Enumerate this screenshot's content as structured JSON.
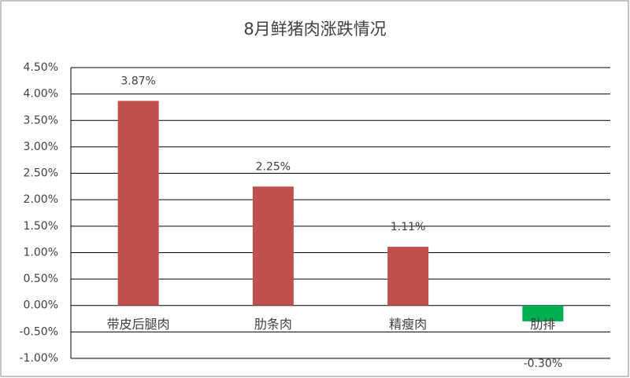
{
  "chart_data": {
    "type": "bar",
    "title": "8月鲜猪肉涨跌情况",
    "categories": [
      "带皮后腿肉",
      "肋条肉",
      "精瘦肉",
      "肋排"
    ],
    "values": [
      3.87,
      2.25,
      1.11,
      -0.3
    ],
    "value_labels": [
      "3.87%",
      "2.25%",
      "1.11%",
      "-0.30%"
    ],
    "colors": [
      "#c0504d",
      "#c0504d",
      "#c0504d",
      "#00b050"
    ],
    "ylim": [
      -1.0,
      4.5
    ],
    "yticks": [
      {
        "value": -1.0,
        "label": "-1.00%"
      },
      {
        "value": -0.5,
        "label": "-0.50%"
      },
      {
        "value": 0,
        "label": "0.00%"
      },
      {
        "value": 0.5,
        "label": "0.50%"
      },
      {
        "value": 1.0,
        "label": "1.00%"
      },
      {
        "value": 1.5,
        "label": "1.50%"
      },
      {
        "value": 2.0,
        "label": "2.00%"
      },
      {
        "value": 2.5,
        "label": "2.50%"
      },
      {
        "value": 3.0,
        "label": "3.00%"
      },
      {
        "value": 3.5,
        "label": "3.50%"
      },
      {
        "value": 4.0,
        "label": "4.00%"
      },
      {
        "value": 4.5,
        "label": "4.50%"
      }
    ],
    "grid": true
  }
}
